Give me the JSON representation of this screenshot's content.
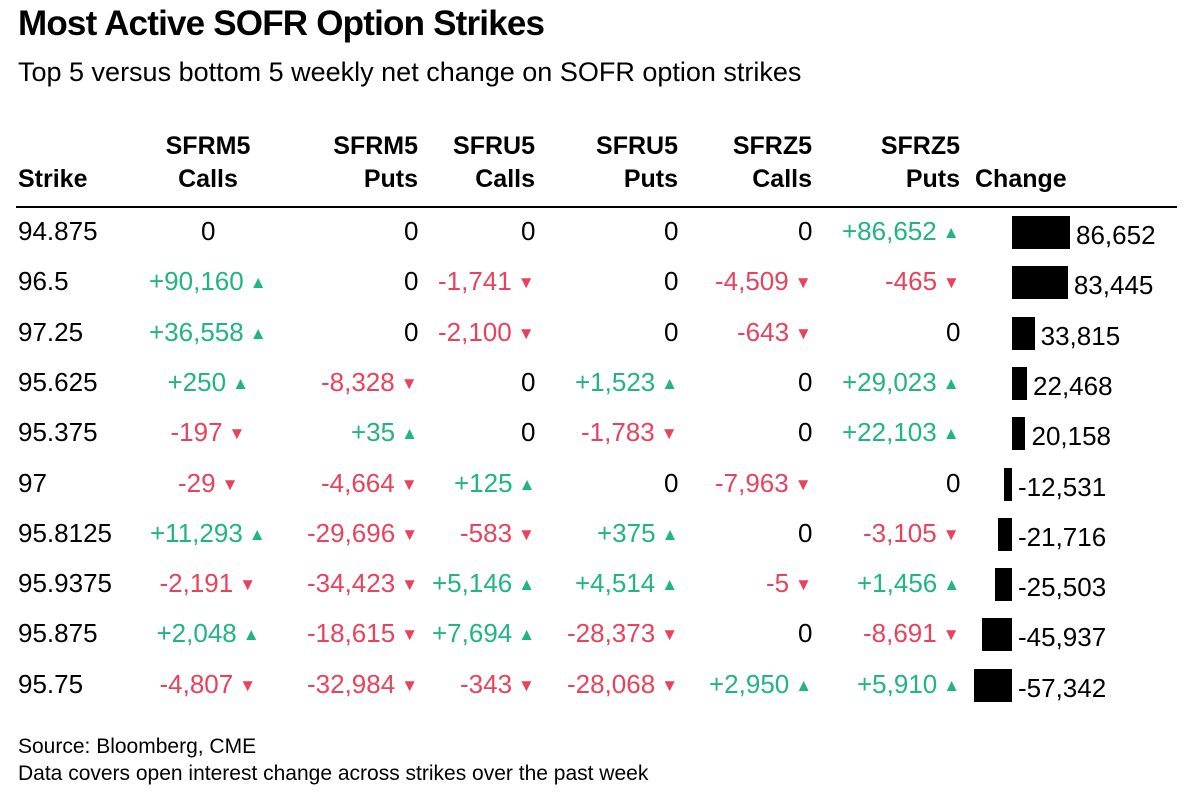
{
  "title": "Most Active SOFR Option Strikes",
  "subtitle": "Top 5 versus bottom 5 weekly net change on SOFR option strikes",
  "headers": {
    "strike": "Strike",
    "sfrm5_calls": [
      "SFRM5",
      "Calls"
    ],
    "sfrm5_puts": [
      "SFRM5",
      "Puts"
    ],
    "sfru5_calls": [
      "SFRU5",
      "Calls"
    ],
    "sfru5_puts": [
      "SFRU5",
      "Puts"
    ],
    "sfrz5_calls": [
      "SFRZ5",
      "Calls"
    ],
    "sfrz5_puts": [
      "SFRZ5",
      "Puts"
    ],
    "change": "Change"
  },
  "colors": {
    "positive": "#21b582",
    "negative": "#e8435c",
    "bar": "#000000"
  },
  "icons": {
    "up": "up-triangle-icon",
    "down": "down-triangle-icon"
  },
  "chart_data": {
    "type": "table",
    "title": "Most Active SOFR Option Strikes",
    "subtitle": "Top 5 versus bottom 5 weekly net change on SOFR option strikes",
    "columns": [
      "Strike",
      "SFRM5 Calls",
      "SFRM5 Puts",
      "SFRU5 Calls",
      "SFRU5 Puts",
      "SFRZ5 Calls",
      "SFRZ5 Puts",
      "Change"
    ],
    "change_range": [
      -57342,
      86652
    ],
    "rows": [
      {
        "strike": "94.875",
        "values": [
          "0",
          "0",
          "0",
          "0",
          "0",
          "+86,652"
        ],
        "change": 86652,
        "change_label": "86,652"
      },
      {
        "strike": "96.5",
        "values": [
          "+90,160",
          "0",
          "-1,741",
          "0",
          "-4,509",
          "-465"
        ],
        "change": 83445,
        "change_label": "83,445"
      },
      {
        "strike": "97.25",
        "values": [
          "+36,558",
          "0",
          "-2,100",
          "0",
          "-643",
          "0"
        ],
        "change": 33815,
        "change_label": "33,815"
      },
      {
        "strike": "95.625",
        "values": [
          "+250",
          "-8,328",
          "0",
          "+1,523",
          "0",
          "+29,023"
        ],
        "change": 22468,
        "change_label": "22,468"
      },
      {
        "strike": "95.375",
        "values": [
          "-197",
          "+35",
          "0",
          "-1,783",
          "0",
          "+22,103"
        ],
        "change": 20158,
        "change_label": "20,158"
      },
      {
        "strike": "97",
        "values": [
          "-29",
          "-4,664",
          "+125",
          "0",
          "-7,963",
          "0"
        ],
        "change": -12531,
        "change_label": "-12,531"
      },
      {
        "strike": "95.8125",
        "values": [
          "+11,293",
          "-29,696",
          "-583",
          "+375",
          "0",
          "-3,105"
        ],
        "change": -21716,
        "change_label": "-21,716"
      },
      {
        "strike": "95.9375",
        "values": [
          "-2,191",
          "-34,423",
          "+5,146",
          "+4,514",
          "-5",
          "+1,456"
        ],
        "change": -25503,
        "change_label": "-25,503"
      },
      {
        "strike": "95.875",
        "values": [
          "+2,048",
          "-18,615",
          "+7,694",
          "-28,373",
          "0",
          "-8,691"
        ],
        "change": -45937,
        "change_label": "-45,937"
      },
      {
        "strike": "95.75",
        "values": [
          "-4,807",
          "-32,984",
          "-343",
          "-28,068",
          "+2,950",
          "+5,910"
        ],
        "change": -57342,
        "change_label": "-57,342"
      }
    ]
  },
  "source": "Source: Bloomberg, CME",
  "note": "Data covers open interest change across strikes over the past week"
}
